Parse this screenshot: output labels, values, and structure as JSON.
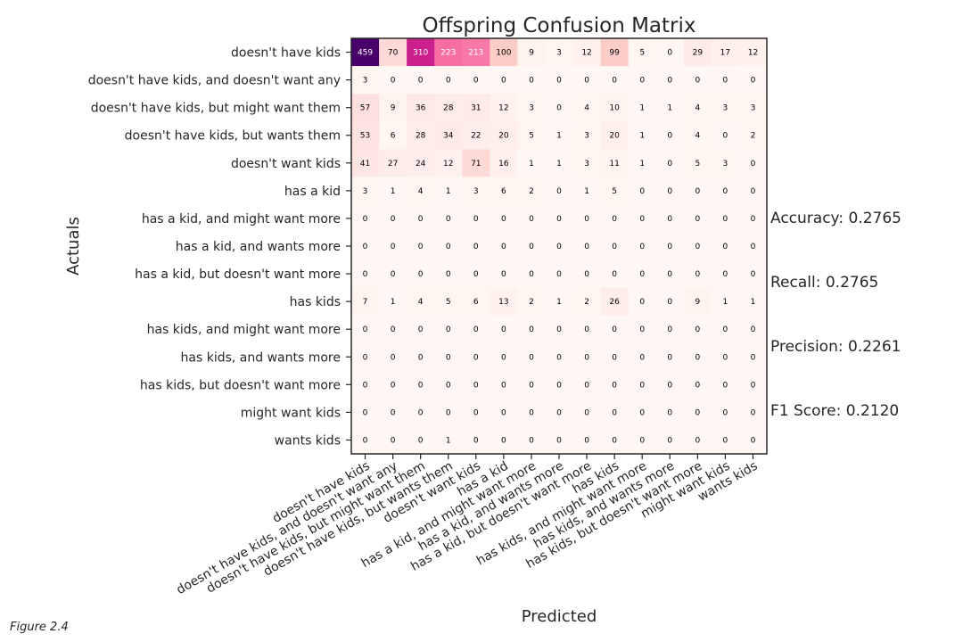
{
  "figure_caption": "Figure 2.4",
  "metrics": [
    {
      "label": "Accuracy: 0.2765"
    },
    {
      "label": "Recall: 0.2765"
    },
    {
      "label": "Precision: 0.2261"
    },
    {
      "label": "F1 Score: 0.2120"
    }
  ],
  "colors": {
    "low": "#fff7f3",
    "mid": "#f768a1",
    "high": "#49006a",
    "axis": "#262626"
  },
  "chart_data": {
    "type": "heatmap",
    "title": "Offspring Confusion Matrix",
    "xlabel": "Predicted",
    "ylabel": "Actuals",
    "color_scale": [
      0,
      459
    ],
    "row_labels": [
      "doesn't have kids",
      "doesn't have kids, and doesn't want any",
      "doesn't have kids, but might want them",
      "doesn't have kids, but wants them",
      "doesn't want kids",
      "has a kid",
      "has a kid, and might want more",
      "has a kid, and wants more",
      "has a kid, but doesn't want more",
      "has kids",
      "has kids, and might want more",
      "has kids, and wants more",
      "has kids, but doesn't want more",
      "might want kids",
      "wants kids"
    ],
    "col_labels": [
      "doesn't have kids",
      "doesn't have kids, and doesn't want any",
      "doesn't have kids, but might want them",
      "doesn't have kids, but wants them",
      "doesn't want kids",
      "has a kid",
      "has a kid, and might want more",
      "has a kid, and wants more",
      "has a kid, but doesn't want more",
      "has kids",
      "has kids, and might want more",
      "has kids, and wants more",
      "has kids, but doesn't want more",
      "might want kids",
      "wants kids"
    ],
    "values": [
      [
        459,
        70,
        310,
        223,
        213,
        100,
        9,
        3,
        12,
        99,
        5,
        0,
        29,
        17,
        12
      ],
      [
        3,
        0,
        0,
        0,
        0,
        0,
        0,
        0,
        0,
        0,
        0,
        0,
        0,
        0,
        0
      ],
      [
        57,
        9,
        36,
        28,
        31,
        12,
        3,
        0,
        4,
        10,
        1,
        1,
        4,
        3,
        3
      ],
      [
        53,
        6,
        28,
        34,
        22,
        20,
        5,
        1,
        3,
        20,
        1,
        0,
        4,
        0,
        2
      ],
      [
        41,
        27,
        24,
        12,
        71,
        16,
        1,
        1,
        3,
        11,
        1,
        0,
        5,
        3,
        0
      ],
      [
        3,
        1,
        4,
        1,
        3,
        6,
        2,
        0,
        1,
        5,
        0,
        0,
        0,
        0,
        0
      ],
      [
        0,
        0,
        0,
        0,
        0,
        0,
        0,
        0,
        0,
        0,
        0,
        0,
        0,
        0,
        0
      ],
      [
        0,
        0,
        0,
        0,
        0,
        0,
        0,
        0,
        0,
        0,
        0,
        0,
        0,
        0,
        0
      ],
      [
        0,
        0,
        0,
        0,
        0,
        0,
        0,
        0,
        0,
        0,
        0,
        0,
        0,
        0,
        0
      ],
      [
        7,
        1,
        4,
        5,
        6,
        13,
        2,
        1,
        2,
        26,
        0,
        0,
        9,
        1,
        1
      ],
      [
        0,
        0,
        0,
        0,
        0,
        0,
        0,
        0,
        0,
        0,
        0,
        0,
        0,
        0,
        0
      ],
      [
        0,
        0,
        0,
        0,
        0,
        0,
        0,
        0,
        0,
        0,
        0,
        0,
        0,
        0,
        0
      ],
      [
        0,
        0,
        0,
        0,
        0,
        0,
        0,
        0,
        0,
        0,
        0,
        0,
        0,
        0,
        0
      ],
      [
        0,
        0,
        0,
        0,
        0,
        0,
        0,
        0,
        0,
        0,
        0,
        0,
        0,
        0,
        0
      ],
      [
        0,
        0,
        0,
        1,
        0,
        0,
        0,
        0,
        0,
        0,
        0,
        0,
        0,
        0,
        0
      ]
    ]
  }
}
